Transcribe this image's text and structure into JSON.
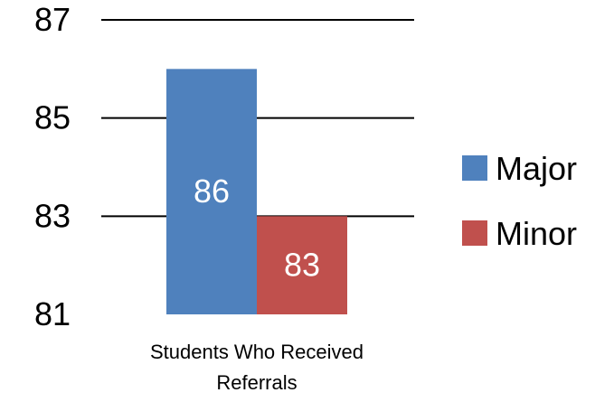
{
  "chart_data": {
    "type": "bar",
    "categories": [
      "Students Who Received Referrals"
    ],
    "category_lines": [
      "Students Who Received",
      "Referrals"
    ],
    "series": [
      {
        "name": "Major",
        "values": [
          86
        ],
        "color": "#4F81BD",
        "label_color": "#ffffff"
      },
      {
        "name": "Minor",
        "values": [
          83
        ],
        "color": "#C0504D",
        "label_color": "#ffffff"
      }
    ],
    "ylim": [
      81,
      87
    ],
    "yticks": [
      81,
      83,
      85,
      87
    ],
    "title": "",
    "xlabel": "",
    "ylabel": "",
    "grid": true,
    "legend": "right"
  }
}
